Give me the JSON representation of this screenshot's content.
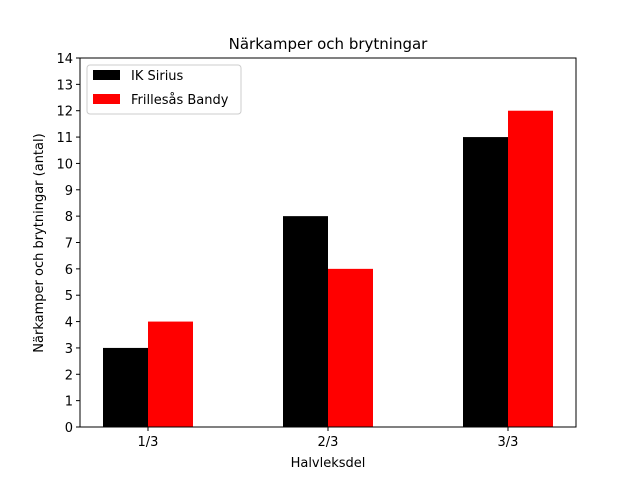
{
  "chart_data": {
    "type": "bar",
    "title": "Närkamper och brytningar",
    "xlabel": "Halvleksdel",
    "ylabel": "Närkamper och brytningar (antal)",
    "categories": [
      "1/3",
      "2/3",
      "3/3"
    ],
    "series": [
      {
        "name": "IK Sirius",
        "color": "#000000",
        "values": [
          3,
          8,
          11
        ]
      },
      {
        "name": "Frillesås Bandy",
        "color": "#ff0000",
        "values": [
          4,
          6,
          12
        ]
      }
    ],
    "ylim": [
      0,
      14
    ],
    "yticks": [
      "0",
      "1",
      "2",
      "3",
      "4",
      "5",
      "6",
      "7",
      "8",
      "9",
      "10",
      "11",
      "12",
      "13",
      "14"
    ],
    "grid": false,
    "legend_position": "top-left"
  }
}
